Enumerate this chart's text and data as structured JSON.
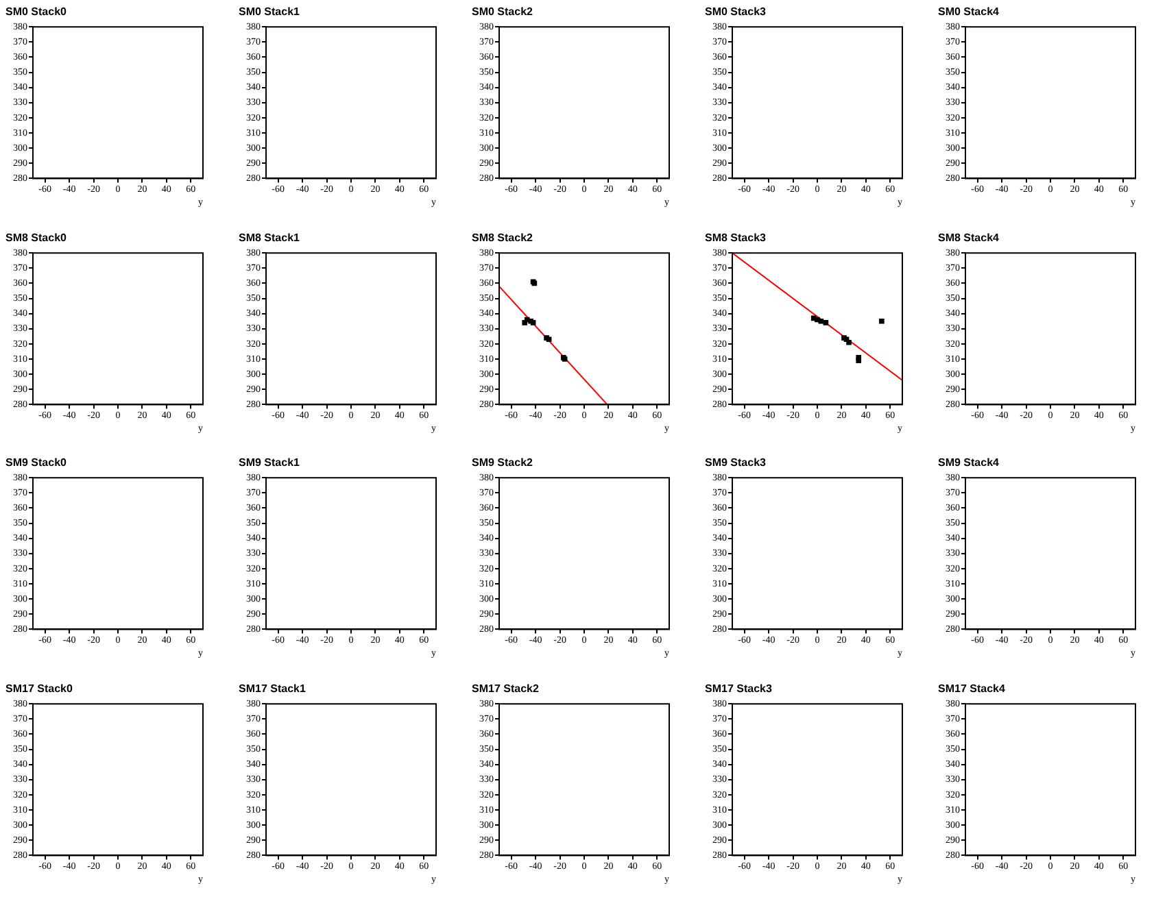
{
  "chart_data": [
    {
      "type": "scatter",
      "title": "SM0 Stack0",
      "xlabel": "y",
      "xlim": [
        -70,
        70
      ],
      "xticks": [
        -60,
        -40,
        -20,
        0,
        20,
        40,
        60
      ],
      "ylim": [
        280,
        380
      ],
      "yticks": [
        280,
        290,
        300,
        310,
        320,
        330,
        340,
        350,
        360,
        370,
        380
      ]
    },
    {
      "type": "scatter",
      "title": "SM0 Stack1",
      "xlabel": "y",
      "xlim": [
        -70,
        70
      ],
      "xticks": [
        -60,
        -40,
        -20,
        0,
        20,
        40,
        60
      ],
      "ylim": [
        280,
        380
      ],
      "yticks": [
        280,
        290,
        300,
        310,
        320,
        330,
        340,
        350,
        360,
        370,
        380
      ]
    },
    {
      "type": "scatter",
      "title": "SM0 Stack2",
      "xlabel": "y",
      "xlim": [
        -70,
        70
      ],
      "xticks": [
        -60,
        -40,
        -20,
        0,
        20,
        40,
        60
      ],
      "ylim": [
        280,
        380
      ],
      "yticks": [
        280,
        290,
        300,
        310,
        320,
        330,
        340,
        350,
        360,
        370,
        380
      ]
    },
    {
      "type": "scatter",
      "title": "SM0 Stack3",
      "xlabel": "y",
      "xlim": [
        -70,
        70
      ],
      "xticks": [
        -60,
        -40,
        -20,
        0,
        20,
        40,
        60
      ],
      "ylim": [
        280,
        380
      ],
      "yticks": [
        280,
        290,
        300,
        310,
        320,
        330,
        340,
        350,
        360,
        370,
        380
      ]
    },
    {
      "type": "scatter",
      "title": "SM0 Stack4",
      "xlabel": "y",
      "xlim": [
        -70,
        70
      ],
      "xticks": [
        -60,
        -40,
        -20,
        0,
        20,
        40,
        60
      ],
      "ylim": [
        280,
        380
      ],
      "yticks": [
        280,
        290,
        300,
        310,
        320,
        330,
        340,
        350,
        360,
        370,
        380
      ]
    },
    {
      "type": "scatter",
      "title": "SM8 Stack0",
      "xlabel": "y",
      "xlim": [
        -70,
        70
      ],
      "xticks": [
        -60,
        -40,
        -20,
        0,
        20,
        40,
        60
      ],
      "ylim": [
        280,
        380
      ],
      "yticks": [
        280,
        290,
        300,
        310,
        320,
        330,
        340,
        350,
        360,
        370,
        380
      ]
    },
    {
      "type": "scatter",
      "title": "SM8 Stack1",
      "xlabel": "y",
      "xlim": [
        -70,
        70
      ],
      "xticks": [
        -60,
        -40,
        -20,
        0,
        20,
        40,
        60
      ],
      "ylim": [
        280,
        380
      ],
      "yticks": [
        280,
        290,
        300,
        310,
        320,
        330,
        340,
        350,
        360,
        370,
        380
      ]
    },
    {
      "type": "scatter",
      "title": "SM8 Stack2",
      "xlabel": "y",
      "xlim": [
        -70,
        70
      ],
      "xticks": [
        -60,
        -40,
        -20,
        0,
        20,
        40,
        60
      ],
      "ylim": [
        280,
        380
      ],
      "yticks": [
        280,
        290,
        300,
        310,
        320,
        330,
        340,
        350,
        360,
        370,
        380
      ],
      "series": [
        {
          "type": "scatter",
          "marker": "square",
          "color": "#000000",
          "x": [
            -42,
            -41,
            -49,
            -47,
            -44,
            -42,
            -31,
            -29,
            -17,
            -16
          ],
          "values": [
            361,
            360,
            334,
            336,
            335,
            334,
            324,
            323,
            311,
            310
          ]
        },
        {
          "type": "line",
          "marker": "none",
          "color": "#ff0000",
          "x": [
            -70,
            19
          ],
          "values": [
            358,
            280
          ]
        }
      ]
    },
    {
      "type": "scatter",
      "title": "SM8 Stack3",
      "xlabel": "y",
      "xlim": [
        -70,
        70
      ],
      "xticks": [
        -60,
        -40,
        -20,
        0,
        20,
        40,
        60
      ],
      "ylim": [
        280,
        380
      ],
      "yticks": [
        280,
        290,
        300,
        310,
        320,
        330,
        340,
        350,
        360,
        370,
        380
      ],
      "series": [
        {
          "type": "scatter",
          "marker": "square",
          "color": "#000000",
          "x": [
            -3,
            0,
            3,
            7,
            22,
            24,
            26,
            34,
            34,
            53
          ],
          "values": [
            337,
            336,
            335,
            334,
            324,
            323,
            321,
            311,
            309,
            335
          ]
        },
        {
          "type": "line",
          "marker": "none",
          "color": "#ff0000",
          "x": [
            -70,
            70
          ],
          "values": [
            380,
            296
          ]
        }
      ]
    },
    {
      "type": "scatter",
      "title": "SM8 Stack4",
      "xlabel": "y",
      "xlim": [
        -70,
        70
      ],
      "xticks": [
        -60,
        -40,
        -20,
        0,
        20,
        40,
        60
      ],
      "ylim": [
        280,
        380
      ],
      "yticks": [
        280,
        290,
        300,
        310,
        320,
        330,
        340,
        350,
        360,
        370,
        380
      ]
    },
    {
      "type": "scatter",
      "title": "SM9 Stack0",
      "xlabel": "y",
      "xlim": [
        -70,
        70
      ],
      "xticks": [
        -60,
        -40,
        -20,
        0,
        20,
        40,
        60
      ],
      "ylim": [
        280,
        380
      ],
      "yticks": [
        280,
        290,
        300,
        310,
        320,
        330,
        340,
        350,
        360,
        370,
        380
      ]
    },
    {
      "type": "scatter",
      "title": "SM9 Stack1",
      "xlabel": "y",
      "xlim": [
        -70,
        70
      ],
      "xticks": [
        -60,
        -40,
        -20,
        0,
        20,
        40,
        60
      ],
      "ylim": [
        280,
        380
      ],
      "yticks": [
        280,
        290,
        300,
        310,
        320,
        330,
        340,
        350,
        360,
        370,
        380
      ]
    },
    {
      "type": "scatter",
      "title": "SM9 Stack2",
      "xlabel": "y",
      "xlim": [
        -70,
        70
      ],
      "xticks": [
        -60,
        -40,
        -20,
        0,
        20,
        40,
        60
      ],
      "ylim": [
        280,
        380
      ],
      "yticks": [
        280,
        290,
        300,
        310,
        320,
        330,
        340,
        350,
        360,
        370,
        380
      ]
    },
    {
      "type": "scatter",
      "title": "SM9 Stack3",
      "xlabel": "y",
      "xlim": [
        -70,
        70
      ],
      "xticks": [
        -60,
        -40,
        -20,
        0,
        20,
        40,
        60
      ],
      "ylim": [
        280,
        380
      ],
      "yticks": [
        280,
        290,
        300,
        310,
        320,
        330,
        340,
        350,
        360,
        370,
        380
      ]
    },
    {
      "type": "scatter",
      "title": "SM9 Stack4",
      "xlabel": "y",
      "xlim": [
        -70,
        70
      ],
      "xticks": [
        -60,
        -40,
        -20,
        0,
        20,
        40,
        60
      ],
      "ylim": [
        280,
        380
      ],
      "yticks": [
        280,
        290,
        300,
        310,
        320,
        330,
        340,
        350,
        360,
        370,
        380
      ]
    },
    {
      "type": "scatter",
      "title": "SM17 Stack0",
      "xlabel": "y",
      "xlim": [
        -70,
        70
      ],
      "xticks": [
        -60,
        -40,
        -20,
        0,
        20,
        40,
        60
      ],
      "ylim": [
        280,
        380
      ],
      "yticks": [
        280,
        290,
        300,
        310,
        320,
        330,
        340,
        350,
        360,
        370,
        380
      ]
    },
    {
      "type": "scatter",
      "title": "SM17 Stack1",
      "xlabel": "y",
      "xlim": [
        -70,
        70
      ],
      "xticks": [
        -60,
        -40,
        -20,
        0,
        20,
        40,
        60
      ],
      "ylim": [
        280,
        380
      ],
      "yticks": [
        280,
        290,
        300,
        310,
        320,
        330,
        340,
        350,
        360,
        370,
        380
      ]
    },
    {
      "type": "scatter",
      "title": "SM17 Stack2",
      "xlabel": "y",
      "xlim": [
        -70,
        70
      ],
      "xticks": [
        -60,
        -40,
        -20,
        0,
        20,
        40,
        60
      ],
      "ylim": [
        280,
        380
      ],
      "yticks": [
        280,
        290,
        300,
        310,
        320,
        330,
        340,
        350,
        360,
        370,
        380
      ]
    },
    {
      "type": "scatter",
      "title": "SM17 Stack3",
      "xlabel": "y",
      "xlim": [
        -70,
        70
      ],
      "xticks": [
        -60,
        -40,
        -20,
        0,
        20,
        40,
        60
      ],
      "ylim": [
        280,
        380
      ],
      "yticks": [
        280,
        290,
        300,
        310,
        320,
        330,
        340,
        350,
        360,
        370,
        380
      ]
    },
    {
      "type": "scatter",
      "title": "SM17 Stack4",
      "xlabel": "y",
      "xlim": [
        -70,
        70
      ],
      "xticks": [
        -60,
        -40,
        -20,
        0,
        20,
        40,
        60
      ],
      "ylim": [
        280,
        380
      ],
      "yticks": [
        280,
        290,
        300,
        310,
        320,
        330,
        340,
        350,
        360,
        370,
        380
      ]
    }
  ]
}
